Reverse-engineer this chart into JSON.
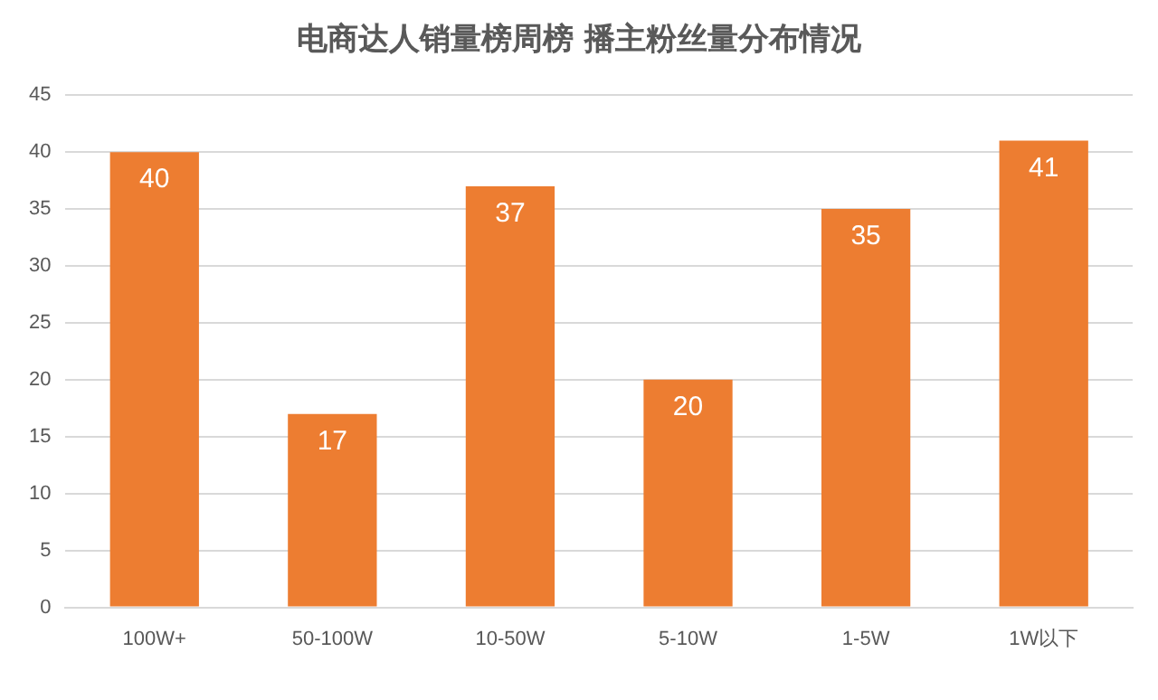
{
  "chart_data": {
    "type": "bar",
    "title": "电商达人销量榜周榜 播主粉丝量分布情况",
    "categories": [
      "100W+",
      "50-100W",
      "10-50W",
      "5-10W",
      "1-5W",
      "1W以下"
    ],
    "values": [
      40,
      17,
      37,
      20,
      35,
      41
    ],
    "color": "#ed7d31",
    "ylim": [
      0,
      45
    ],
    "yticks": [
      0,
      5,
      10,
      15,
      20,
      25,
      30,
      35,
      40,
      45
    ],
    "grid": "y",
    "data_labels": true,
    "legend": false
  }
}
